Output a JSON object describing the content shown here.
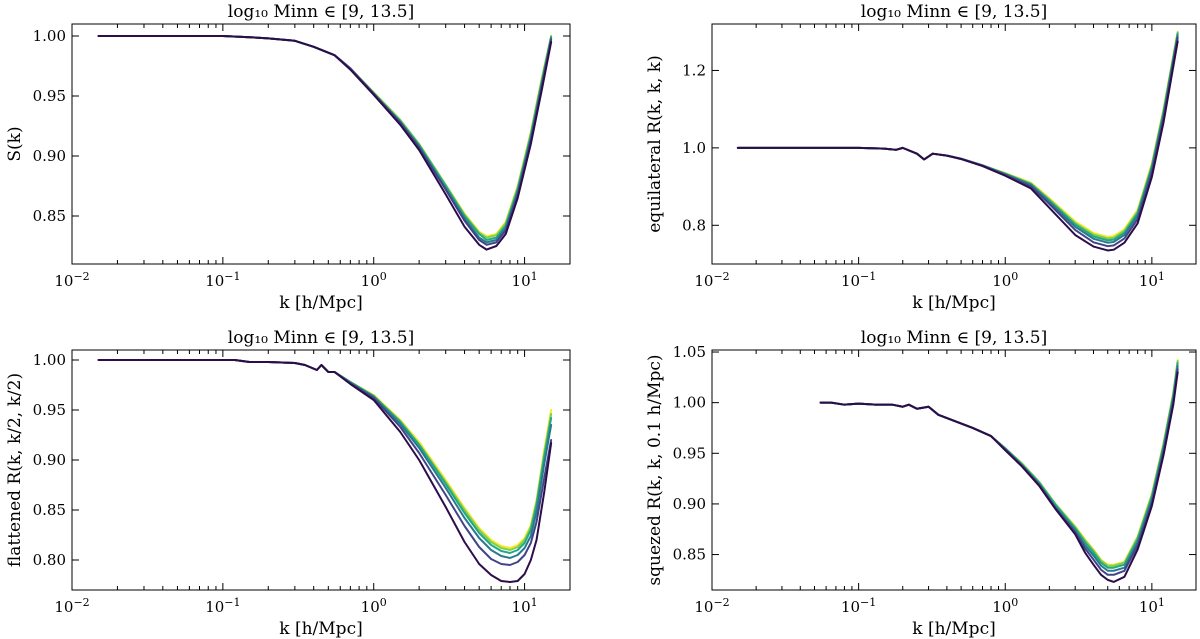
{
  "figure": {
    "palette": [
      "#fde725",
      "#7ad151",
      "#22a884",
      "#2a788e",
      "#414487",
      "#2c0d4a"
    ]
  },
  "chart_data": [
    {
      "type": "line",
      "title": "log₁₀ M_inn ∈ [9, 13.5]",
      "xlabel": "k [h/Mpc]",
      "ylabel": "S(k)",
      "xscale": "log",
      "xlim": [
        0.01,
        20
      ],
      "ylim": [
        0.81,
        1.01
      ],
      "xticks": [
        {
          "v": 0.01,
          "base": "10",
          "exp": "−2"
        },
        {
          "v": 0.1,
          "base": "10",
          "exp": "−1"
        },
        {
          "v": 1,
          "base": "10",
          "exp": "0"
        },
        {
          "v": 10,
          "base": "10",
          "exp": "1"
        }
      ],
      "yticks": [
        {
          "v": 0.85,
          "label": "0.85"
        },
        {
          "v": 0.9,
          "label": "0.90"
        },
        {
          "v": 0.95,
          "label": "0.95"
        },
        {
          "v": 1.0,
          "label": "1.00"
        }
      ],
      "x": [
        0.015,
        0.03,
        0.06,
        0.1,
        0.15,
        0.2,
        0.3,
        0.4,
        0.55,
        0.7,
        1.0,
        1.5,
        2.0,
        3.0,
        4.0,
        5.0,
        5.6,
        6.5,
        7.5,
        9.0,
        11.0,
        13.0,
        15.0
      ],
      "series": [
        {
          "values": [
            1.0,
            1.0,
            1.0,
            1.0,
            0.999,
            0.998,
            0.996,
            0.991,
            0.984,
            0.973,
            0.953,
            0.93,
            0.91,
            0.876,
            0.852,
            0.837,
            0.833,
            0.835,
            0.845,
            0.875,
            0.92,
            0.965,
            1.0
          ]
        },
        {
          "values": [
            1.0,
            1.0,
            1.0,
            1.0,
            0.999,
            0.998,
            0.996,
            0.991,
            0.984,
            0.973,
            0.953,
            0.93,
            0.91,
            0.876,
            0.851,
            0.836,
            0.832,
            0.834,
            0.844,
            0.874,
            0.919,
            0.964,
            1.0
          ]
        },
        {
          "values": [
            1.0,
            1.0,
            1.0,
            1.0,
            0.999,
            0.998,
            0.996,
            0.991,
            0.984,
            0.973,
            0.952,
            0.929,
            0.909,
            0.875,
            0.85,
            0.835,
            0.83,
            0.832,
            0.842,
            0.872,
            0.917,
            0.962,
            0.999
          ]
        },
        {
          "values": [
            1.0,
            1.0,
            1.0,
            1.0,
            0.999,
            0.998,
            0.996,
            0.991,
            0.984,
            0.973,
            0.952,
            0.928,
            0.908,
            0.873,
            0.848,
            0.832,
            0.828,
            0.83,
            0.84,
            0.87,
            0.915,
            0.96,
            0.998
          ]
        },
        {
          "values": [
            1.0,
            1.0,
            1.0,
            1.0,
            0.999,
            0.998,
            0.996,
            0.991,
            0.984,
            0.973,
            0.952,
            0.928,
            0.907,
            0.872,
            0.846,
            0.83,
            0.826,
            0.828,
            0.838,
            0.868,
            0.913,
            0.958,
            0.997
          ]
        },
        {
          "values": [
            1.0,
            1.0,
            1.0,
            1.0,
            0.999,
            0.998,
            0.996,
            0.991,
            0.984,
            0.972,
            0.951,
            0.926,
            0.905,
            0.868,
            0.841,
            0.826,
            0.822,
            0.825,
            0.835,
            0.865,
            0.91,
            0.955,
            0.995
          ]
        }
      ]
    },
    {
      "type": "line",
      "title": "log₁₀ M_inn ∈ [9, 13.5]",
      "xlabel": "k [h/Mpc]",
      "ylabel": "equilateral R(k, k, k)",
      "xscale": "log",
      "xlim": [
        0.01,
        20
      ],
      "ylim": [
        0.7,
        1.32
      ],
      "xticks": [
        {
          "v": 0.01,
          "base": "10",
          "exp": "−2"
        },
        {
          "v": 0.1,
          "base": "10",
          "exp": "−1"
        },
        {
          "v": 1,
          "base": "10",
          "exp": "0"
        },
        {
          "v": 10,
          "base": "10",
          "exp": "1"
        }
      ],
      "yticks": [
        {
          "v": 0.8,
          "label": "0.8"
        },
        {
          "v": 1.0,
          "label": "1.0"
        },
        {
          "v": 1.2,
          "label": "1.2"
        }
      ],
      "x": [
        0.015,
        0.03,
        0.06,
        0.1,
        0.15,
        0.18,
        0.2,
        0.25,
        0.28,
        0.32,
        0.4,
        0.5,
        0.7,
        1.0,
        1.5,
        2.0,
        3.0,
        4.0,
        5.0,
        5.5,
        6.5,
        8.0,
        10.0,
        12.0,
        15.0
      ],
      "series": [
        {
          "values": [
            1.0,
            1.0,
            1.0,
            1.0,
            0.998,
            0.995,
            1.0,
            0.985,
            0.97,
            0.985,
            0.98,
            0.972,
            0.955,
            0.935,
            0.91,
            0.87,
            0.81,
            0.78,
            0.77,
            0.772,
            0.79,
            0.84,
            0.96,
            1.1,
            1.3
          ]
        },
        {
          "values": [
            1.0,
            1.0,
            1.0,
            1.0,
            0.998,
            0.995,
            1.0,
            0.985,
            0.97,
            0.985,
            0.98,
            0.972,
            0.955,
            0.934,
            0.908,
            0.867,
            0.806,
            0.776,
            0.766,
            0.768,
            0.786,
            0.836,
            0.956,
            1.096,
            1.298
          ]
        },
        {
          "values": [
            1.0,
            1.0,
            1.0,
            1.0,
            0.998,
            0.995,
            1.0,
            0.985,
            0.97,
            0.985,
            0.98,
            0.972,
            0.955,
            0.933,
            0.906,
            0.864,
            0.802,
            0.771,
            0.761,
            0.763,
            0.781,
            0.831,
            0.951,
            1.091,
            1.295
          ]
        },
        {
          "values": [
            1.0,
            1.0,
            1.0,
            1.0,
            0.998,
            0.995,
            1.0,
            0.985,
            0.97,
            0.985,
            0.98,
            0.972,
            0.955,
            0.932,
            0.904,
            0.86,
            0.796,
            0.765,
            0.755,
            0.757,
            0.775,
            0.825,
            0.945,
            1.085,
            1.29
          ]
        },
        {
          "values": [
            1.0,
            1.0,
            1.0,
            1.0,
            0.998,
            0.995,
            1.0,
            0.985,
            0.97,
            0.985,
            0.98,
            0.972,
            0.954,
            0.93,
            0.9,
            0.855,
            0.788,
            0.756,
            0.746,
            0.748,
            0.766,
            0.816,
            0.936,
            1.076,
            1.284
          ]
        },
        {
          "values": [
            1.0,
            1.0,
            1.0,
            1.0,
            0.998,
            0.995,
            1.0,
            0.985,
            0.97,
            0.985,
            0.98,
            0.971,
            0.953,
            0.928,
            0.895,
            0.845,
            0.775,
            0.745,
            0.735,
            0.737,
            0.755,
            0.805,
            0.925,
            1.065,
            1.275
          ]
        }
      ]
    },
    {
      "type": "line",
      "title": "log₁₀ M_inn ∈ [9, 13.5]",
      "xlabel": "k [h/Mpc]",
      "ylabel": "flattened R(k, k/2, k/2)",
      "xscale": "log",
      "xlim": [
        0.01,
        20
      ],
      "ylim": [
        0.77,
        1.01
      ],
      "xticks": [
        {
          "v": 0.01,
          "base": "10",
          "exp": "−2"
        },
        {
          "v": 0.1,
          "base": "10",
          "exp": "−1"
        },
        {
          "v": 1,
          "base": "10",
          "exp": "0"
        },
        {
          "v": 10,
          "base": "10",
          "exp": "1"
        }
      ],
      "yticks": [
        {
          "v": 0.8,
          "label": "0.80"
        },
        {
          "v": 0.85,
          "label": "0.85"
        },
        {
          "v": 0.9,
          "label": "0.90"
        },
        {
          "v": 0.95,
          "label": "0.95"
        },
        {
          "v": 1.0,
          "label": "1.00"
        }
      ],
      "x": [
        0.015,
        0.03,
        0.06,
        0.1,
        0.12,
        0.15,
        0.2,
        0.3,
        0.35,
        0.42,
        0.45,
        0.5,
        0.55,
        0.7,
        1.0,
        1.5,
        2.0,
        3.0,
        4.0,
        5.0,
        6.0,
        7.0,
        8.0,
        9.0,
        10.0,
        11.0,
        12.0,
        13.5,
        15.0
      ],
      "series": [
        {
          "values": [
            1.0,
            1.0,
            1.0,
            1.0,
            1.0,
            0.998,
            0.998,
            0.997,
            0.995,
            0.99,
            0.995,
            0.988,
            0.988,
            0.978,
            0.965,
            0.94,
            0.918,
            0.88,
            0.852,
            0.832,
            0.82,
            0.814,
            0.812,
            0.815,
            0.822,
            0.835,
            0.86,
            0.91,
            0.95
          ]
        },
        {
          "values": [
            1.0,
            1.0,
            1.0,
            1.0,
            1.0,
            0.998,
            0.998,
            0.997,
            0.995,
            0.99,
            0.995,
            0.988,
            0.988,
            0.978,
            0.964,
            0.939,
            0.916,
            0.878,
            0.85,
            0.83,
            0.818,
            0.812,
            0.81,
            0.813,
            0.82,
            0.833,
            0.858,
            0.907,
            0.946
          ]
        },
        {
          "values": [
            1.0,
            1.0,
            1.0,
            1.0,
            1.0,
            0.998,
            0.998,
            0.997,
            0.995,
            0.99,
            0.995,
            0.988,
            0.988,
            0.978,
            0.964,
            0.938,
            0.915,
            0.876,
            0.847,
            0.827,
            0.815,
            0.809,
            0.807,
            0.81,
            0.817,
            0.83,
            0.855,
            0.903,
            0.942
          ]
        },
        {
          "values": [
            1.0,
            1.0,
            1.0,
            1.0,
            1.0,
            0.998,
            0.998,
            0.997,
            0.995,
            0.99,
            0.995,
            0.988,
            0.988,
            0.977,
            0.963,
            0.936,
            0.912,
            0.872,
            0.842,
            0.822,
            0.81,
            0.804,
            0.802,
            0.805,
            0.812,
            0.824,
            0.848,
            0.896,
            0.935
          ]
        },
        {
          "values": [
            1.0,
            1.0,
            1.0,
            1.0,
            1.0,
            0.998,
            0.998,
            0.997,
            0.995,
            0.99,
            0.995,
            0.988,
            0.988,
            0.977,
            0.962,
            0.933,
            0.907,
            0.865,
            0.834,
            0.813,
            0.801,
            0.796,
            0.795,
            0.798,
            0.805,
            0.817,
            0.838,
            0.882,
            0.92
          ]
        },
        {
          "values": [
            1.0,
            1.0,
            1.0,
            1.0,
            1.0,
            0.998,
            0.998,
            0.997,
            0.995,
            0.99,
            0.995,
            0.988,
            0.988,
            0.976,
            0.96,
            0.928,
            0.9,
            0.853,
            0.818,
            0.796,
            0.785,
            0.779,
            0.778,
            0.779,
            0.786,
            0.8,
            0.82,
            0.868,
            0.917
          ]
        }
      ]
    },
    {
      "type": "line",
      "title": "log₁₀ M_inn ∈ [9, 13.5]",
      "xlabel": "k [h/Mpc]",
      "ylabel": "squezed R(k, k, 0.1 h/Mpc)",
      "xscale": "log",
      "xlim": [
        0.01,
        20
      ],
      "ylim": [
        0.815,
        1.052
      ],
      "xticks": [
        {
          "v": 0.01,
          "base": "10",
          "exp": "−2"
        },
        {
          "v": 0.1,
          "base": "10",
          "exp": "−1"
        },
        {
          "v": 1,
          "base": "10",
          "exp": "0"
        },
        {
          "v": 10,
          "base": "10",
          "exp": "1"
        }
      ],
      "yticks": [
        {
          "v": 0.85,
          "label": "0.85"
        },
        {
          "v": 0.9,
          "label": "0.90"
        },
        {
          "v": 0.95,
          "label": "0.95"
        },
        {
          "v": 1.0,
          "label": "1.00"
        },
        {
          "v": 1.05,
          "label": "1.05"
        }
      ],
      "x": [
        0.055,
        0.065,
        0.08,
        0.1,
        0.13,
        0.17,
        0.2,
        0.22,
        0.25,
        0.3,
        0.35,
        0.45,
        0.6,
        0.8,
        1.0,
        1.3,
        1.7,
        2.2,
        3.0,
        3.5,
        4.0,
        4.5,
        5.0,
        5.5,
        6.5,
        8.0,
        10.0,
        12.0,
        14.0,
        15.0
      ],
      "series": [
        {
          "values": [
            1.0,
            1.0,
            0.998,
            0.999,
            0.998,
            0.998,
            0.996,
            0.998,
            0.994,
            0.996,
            0.988,
            0.982,
            0.975,
            0.967,
            0.955,
            0.94,
            0.922,
            0.9,
            0.878,
            0.865,
            0.855,
            0.845,
            0.84,
            0.84,
            0.843,
            0.868,
            0.91,
            0.96,
            1.01,
            1.042
          ]
        },
        {
          "values": [
            1.0,
            1.0,
            0.998,
            0.999,
            0.998,
            0.998,
            0.996,
            0.998,
            0.994,
            0.996,
            0.988,
            0.982,
            0.975,
            0.967,
            0.955,
            0.94,
            0.922,
            0.9,
            0.877,
            0.864,
            0.854,
            0.844,
            0.839,
            0.839,
            0.842,
            0.867,
            0.909,
            0.959,
            1.009,
            1.041
          ]
        },
        {
          "values": [
            1.0,
            1.0,
            0.998,
            0.999,
            0.998,
            0.998,
            0.996,
            0.998,
            0.994,
            0.996,
            0.988,
            0.982,
            0.975,
            0.967,
            0.955,
            0.939,
            0.921,
            0.899,
            0.876,
            0.862,
            0.852,
            0.842,
            0.837,
            0.837,
            0.84,
            0.865,
            0.907,
            0.957,
            1.007,
            1.039
          ]
        },
        {
          "values": [
            1.0,
            1.0,
            0.998,
            0.999,
            0.998,
            0.998,
            0.996,
            0.998,
            0.994,
            0.996,
            0.988,
            0.982,
            0.975,
            0.967,
            0.954,
            0.938,
            0.92,
            0.897,
            0.874,
            0.859,
            0.849,
            0.839,
            0.834,
            0.834,
            0.837,
            0.862,
            0.904,
            0.954,
            1.004,
            1.036
          ]
        },
        {
          "values": [
            1.0,
            1.0,
            0.998,
            0.999,
            0.998,
            0.998,
            0.996,
            0.998,
            0.994,
            0.996,
            0.988,
            0.982,
            0.975,
            0.967,
            0.954,
            0.938,
            0.919,
            0.896,
            0.872,
            0.856,
            0.845,
            0.835,
            0.83,
            0.83,
            0.834,
            0.859,
            0.901,
            0.951,
            1.001,
            1.033
          ]
        },
        {
          "values": [
            1.0,
            1.0,
            0.998,
            0.999,
            0.998,
            0.998,
            0.996,
            0.998,
            0.994,
            0.996,
            0.988,
            0.982,
            0.975,
            0.967,
            0.953,
            0.937,
            0.918,
            0.895,
            0.87,
            0.852,
            0.84,
            0.83,
            0.825,
            0.823,
            0.828,
            0.855,
            0.898,
            0.948,
            0.998,
            1.03
          ]
        }
      ]
    }
  ]
}
